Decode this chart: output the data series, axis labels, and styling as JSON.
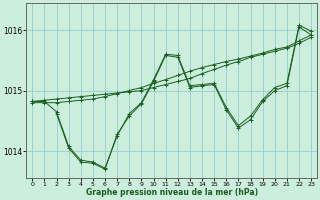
{
  "xlabel": "Graphe pression niveau de la mer (hPa)",
  "background_color": "#cceedd",
  "grid_color": "#99cccc",
  "line_color": "#1a5e20",
  "ylim": [
    1013.55,
    1016.45
  ],
  "yticks": [
    1014,
    1015,
    1016
  ],
  "xticks": [
    0,
    1,
    2,
    3,
    4,
    5,
    6,
    7,
    8,
    9,
    10,
    11,
    12,
    13,
    14,
    15,
    16,
    17,
    18,
    19,
    20,
    21,
    22,
    23
  ],
  "series": [
    {
      "x": [
        0,
        1,
        2,
        3,
        4,
        5,
        6,
        7,
        8,
        9,
        10,
        11,
        12,
        13,
        14,
        15,
        16,
        17,
        18,
        19,
        20,
        21,
        22,
        23
      ],
      "y": [
        1014.82,
        1014.84,
        1014.86,
        1014.88,
        1014.9,
        1014.92,
        1014.94,
        1014.96,
        1014.98,
        1015.0,
        1015.05,
        1015.1,
        1015.15,
        1015.2,
        1015.28,
        1015.35,
        1015.42,
        1015.48,
        1015.55,
        1015.6,
        1015.65,
        1015.7,
        1015.78,
        1015.88
      ]
    },
    {
      "x": [
        0,
        1,
        2,
        3,
        4,
        5,
        6,
        7,
        8,
        9,
        10,
        11,
        12,
        13,
        14,
        15,
        16,
        17,
        18,
        19,
        20,
        21,
        22,
        23
      ],
      "y": [
        1014.8,
        1014.8,
        1014.8,
        1014.82,
        1014.84,
        1014.86,
        1014.9,
        1014.95,
        1015.0,
        1015.05,
        1015.12,
        1015.18,
        1015.25,
        1015.32,
        1015.38,
        1015.43,
        1015.48,
        1015.52,
        1015.57,
        1015.62,
        1015.68,
        1015.72,
        1015.82,
        1015.92
      ]
    },
    {
      "x": [
        0,
        1,
        2,
        3,
        4,
        5,
        6,
        7,
        8,
        9,
        10,
        11,
        12,
        13,
        14,
        15,
        16,
        17,
        18,
        19,
        20,
        21,
        22,
        23
      ],
      "y": [
        1014.82,
        1014.82,
        1014.65,
        1014.08,
        1013.85,
        1013.82,
        1013.72,
        1014.25,
        1014.62,
        1014.8,
        1015.18,
        1015.6,
        1015.58,
        1015.08,
        1015.1,
        1015.12,
        1014.72,
        1014.42,
        1014.58,
        1014.85,
        1015.05,
        1015.12,
        1016.08,
        1015.98
      ]
    },
    {
      "x": [
        2,
        3,
        4,
        5,
        6,
        7,
        8,
        9,
        10,
        11,
        12,
        13,
        14,
        15,
        16,
        17,
        18,
        19,
        20,
        21,
        22,
        23
      ],
      "y": [
        1014.62,
        1014.05,
        1013.82,
        1013.8,
        1013.7,
        1014.28,
        1014.58,
        1014.78,
        1015.15,
        1015.58,
        1015.55,
        1015.05,
        1015.08,
        1015.1,
        1014.68,
        1014.38,
        1014.52,
        1014.82,
        1015.0,
        1015.08,
        1016.05,
        1015.92
      ]
    }
  ]
}
